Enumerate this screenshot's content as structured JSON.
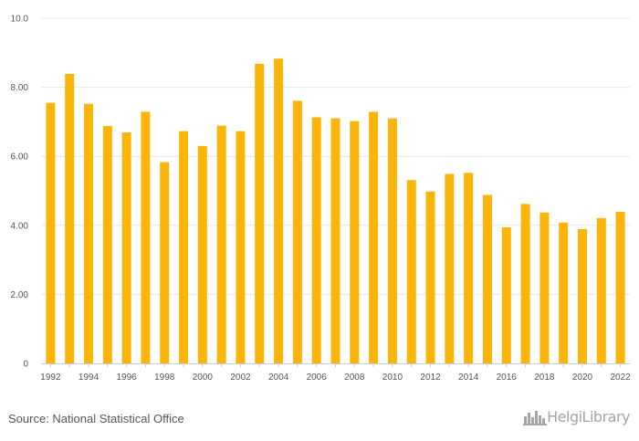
{
  "colors": {
    "bar": "#FBB40A",
    "grid": "#e8e8e8",
    "axis": "#cccccc",
    "text": "#555555",
    "logo": "#a5a5a5"
  },
  "chart_data": {
    "type": "bar",
    "title": "",
    "xlabel": "",
    "ylabel": "",
    "ylim": [
      0,
      10
    ],
    "y_ticks": [
      0,
      2,
      4,
      6,
      8,
      10
    ],
    "y_tick_labels": [
      "0",
      "2.00",
      "4.00",
      "6.00",
      "8.00",
      "10.0"
    ],
    "grid": true,
    "categories": [
      "1992",
      "1993",
      "1994",
      "1995",
      "1996",
      "1997",
      "1998",
      "1999",
      "2000",
      "2001",
      "2002",
      "2003",
      "2004",
      "2005",
      "2006",
      "2007",
      "2008",
      "2009",
      "2010",
      "2011",
      "2012",
      "2013",
      "2014",
      "2015",
      "2016",
      "2017",
      "2018",
      "2019",
      "2020",
      "2021",
      "2022"
    ],
    "x_tick_labels": [
      "1992",
      "",
      "1994",
      "",
      "1996",
      "",
      "1998",
      "",
      "2000",
      "",
      "2002",
      "",
      "2004",
      "",
      "2006",
      "",
      "2008",
      "",
      "2010",
      "",
      "2012",
      "",
      "2014",
      "",
      "2016",
      "",
      "2018",
      "",
      "2020",
      "",
      "2022"
    ],
    "values": [
      7.55,
      8.39,
      7.52,
      6.88,
      6.69,
      7.29,
      5.83,
      6.73,
      6.3,
      6.89,
      6.73,
      8.68,
      8.83,
      7.61,
      7.13,
      7.1,
      7.02,
      7.29,
      7.1,
      5.31,
      4.98,
      5.49,
      5.52,
      4.88,
      3.94,
      4.62,
      4.37,
      4.08,
      3.89,
      4.21,
      4.39
    ]
  },
  "footer": {
    "source": "Source: National Statistical Office",
    "logo_text": "HelgiLibrary",
    "logo_icon": "city-skyline-icon"
  }
}
